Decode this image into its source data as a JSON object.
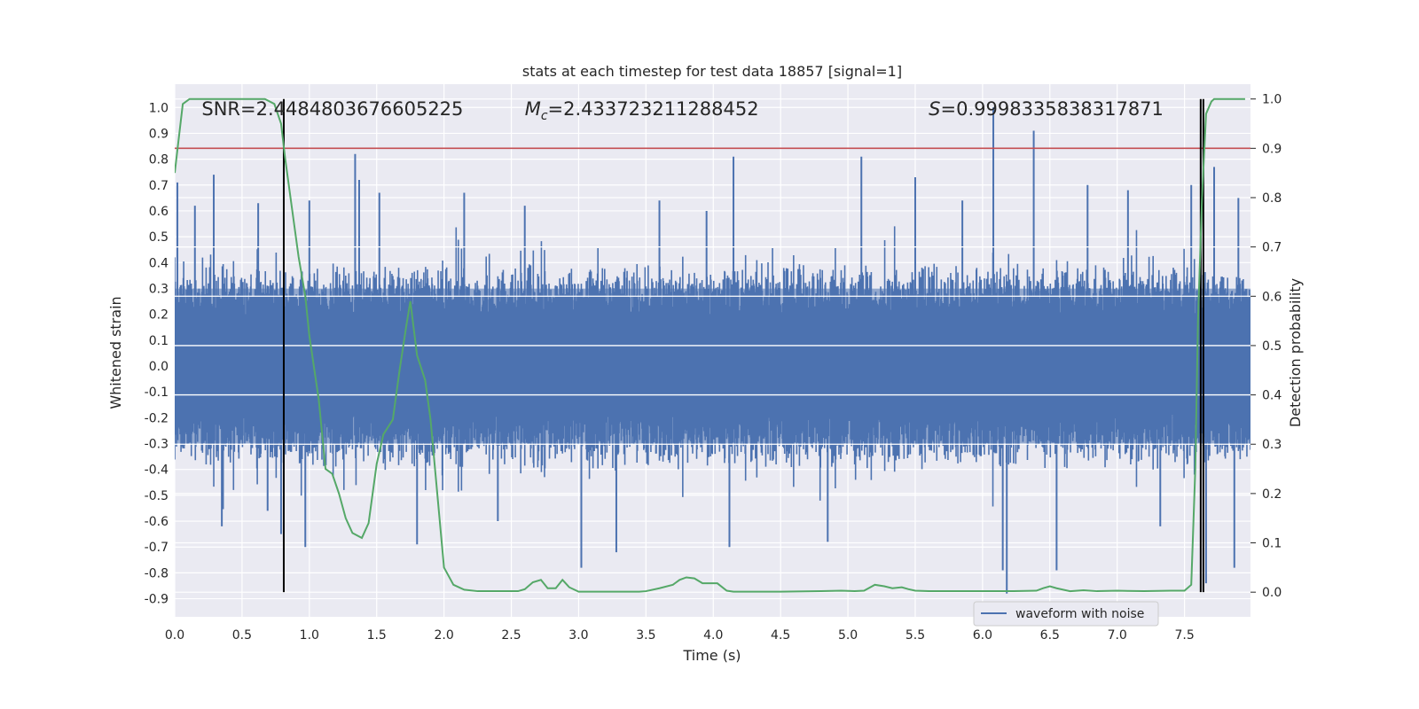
{
  "chart_data": {
    "type": "line",
    "title": "stats at each timestep for test data 18857 [signal=1]",
    "xlabel": "Time (s)",
    "ylabel_left": "Whitened strain",
    "ylabel_right": "Detection probability",
    "xlim": [
      0.0,
      7.99
    ],
    "ylim_left": [
      -0.97,
      1.09
    ],
    "ylim_right": [
      -0.05,
      1.03
    ],
    "x_ticks": [
      "0.0",
      "0.5",
      "1.0",
      "1.5",
      "2.0",
      "2.5",
      "3.0",
      "3.5",
      "4.0",
      "4.5",
      "5.0",
      "5.5",
      "6.0",
      "6.5",
      "7.0",
      "7.5"
    ],
    "x_tick_values": [
      0.0,
      0.5,
      1.0,
      1.5,
      2.0,
      2.5,
      3.0,
      3.5,
      4.0,
      4.5,
      5.0,
      5.5,
      6.0,
      6.5,
      7.0,
      7.5
    ],
    "y_left_ticks": [
      "1.0",
      "0.9",
      "0.8",
      "0.7",
      "0.6",
      "0.5",
      "0.4",
      "0.3",
      "0.2",
      "0.1",
      "0.0",
      "-0.1",
      "-0.2",
      "-0.3",
      "-0.4",
      "-0.5",
      "-0.6",
      "-0.7",
      "-0.8",
      "-0.9"
    ],
    "y_left_tick_values": [
      1.0,
      0.9,
      0.8,
      0.7,
      0.6,
      0.5,
      0.4,
      0.3,
      0.2,
      0.1,
      0.0,
      -0.1,
      -0.2,
      -0.3,
      -0.4,
      -0.5,
      -0.6,
      -0.7,
      -0.8,
      -0.9
    ],
    "y_right_ticks": [
      "1.0",
      "0.9",
      "0.8",
      "0.7",
      "0.6",
      "0.5",
      "0.4",
      "0.3",
      "0.2",
      "0.1",
      "0.0"
    ],
    "y_right_tick_values": [
      1.0,
      0.9,
      0.8,
      0.7,
      0.6,
      0.5,
      0.4,
      0.3,
      0.2,
      0.1,
      0.0
    ],
    "annotations": [
      {
        "text": "SNR=2.4484803676605225",
        "x": 0.2,
        "y": 0.99
      },
      {
        "text": "M_c=2.433723211288452",
        "x": 2.6,
        "y": 0.99
      },
      {
        "text": "S=0.9998335838317871",
        "x": 5.6,
        "y": 0.99
      }
    ],
    "legend": {
      "entries": [
        "waveform with noise"
      ],
      "placement": "lower-right"
    },
    "grid": true,
    "colors": {
      "waveform": "#4c72b0",
      "probability": "#55a868",
      "threshold": "#c44e52",
      "marker": "#000000",
      "background": "#eaeaf2"
    },
    "threshold": {
      "axis": "right",
      "value": 0.9
    },
    "vertical_markers": [
      0.81,
      7.62,
      7.64
    ],
    "waveform": {
      "name": "waveform with noise",
      "duration_s": 8.0,
      "typical_envelope": 0.4,
      "peaks": [
        {
          "x": 0.02,
          "y": 0.71
        },
        {
          "x": 0.15,
          "y": 0.62
        },
        {
          "x": 0.29,
          "y": 0.74
        },
        {
          "x": 0.35,
          "y": -0.62
        },
        {
          "x": 0.62,
          "y": 0.63
        },
        {
          "x": 0.69,
          "y": -0.56
        },
        {
          "x": 0.79,
          "y": -0.65
        },
        {
          "x": 0.97,
          "y": -0.7
        },
        {
          "x": 1.0,
          "y": 0.64
        },
        {
          "x": 1.34,
          "y": 0.82
        },
        {
          "x": 1.37,
          "y": 0.72
        },
        {
          "x": 1.52,
          "y": 0.67
        },
        {
          "x": 1.8,
          "y": -0.69
        },
        {
          "x": 2.15,
          "y": 0.67
        },
        {
          "x": 2.4,
          "y": -0.6
        },
        {
          "x": 2.6,
          "y": 0.62
        },
        {
          "x": 3.02,
          "y": -0.78
        },
        {
          "x": 3.28,
          "y": -0.72
        },
        {
          "x": 3.6,
          "y": 0.64
        },
        {
          "x": 3.95,
          "y": 0.6
        },
        {
          "x": 4.15,
          "y": 0.81
        },
        {
          "x": 4.12,
          "y": -0.7
        },
        {
          "x": 4.85,
          "y": -0.68
        },
        {
          "x": 5.1,
          "y": 0.81
        },
        {
          "x": 5.5,
          "y": 0.73
        },
        {
          "x": 5.85,
          "y": 0.64
        },
        {
          "x": 6.08,
          "y": 1.0
        },
        {
          "x": 6.15,
          "y": -0.79
        },
        {
          "x": 6.18,
          "y": -0.88
        },
        {
          "x": 6.38,
          "y": 0.91
        },
        {
          "x": 6.55,
          "y": -0.79
        },
        {
          "x": 6.78,
          "y": 0.7
        },
        {
          "x": 7.08,
          "y": 0.68
        },
        {
          "x": 7.32,
          "y": -0.62
        },
        {
          "x": 7.55,
          "y": 0.7
        },
        {
          "x": 7.72,
          "y": 0.77
        },
        {
          "x": 7.87,
          "y": -0.78
        },
        {
          "x": 7.66,
          "y": -0.84
        },
        {
          "x": 7.9,
          "y": 0.65
        }
      ]
    },
    "probability": {
      "name": "detection probability",
      "x": [
        0.0,
        0.06,
        0.11,
        0.2,
        0.3,
        0.4,
        0.5,
        0.6,
        0.67,
        0.74,
        0.79,
        0.82,
        0.87,
        0.92,
        0.97,
        1.0,
        1.07,
        1.12,
        1.17,
        1.22,
        1.27,
        1.32,
        1.39,
        1.44,
        1.5,
        1.55,
        1.62,
        1.67,
        1.72,
        1.75,
        1.8,
        1.86,
        1.9,
        1.95,
        2.0,
        2.07,
        2.15,
        2.25,
        2.4,
        2.55,
        2.6,
        2.66,
        2.72,
        2.77,
        2.83,
        2.88,
        2.93,
        3.0,
        3.1,
        3.3,
        3.45,
        3.5,
        3.6,
        3.7,
        3.75,
        3.8,
        3.86,
        3.92,
        3.98,
        4.03,
        4.1,
        4.15,
        4.2,
        4.3,
        4.5,
        4.8,
        4.95,
        5.05,
        5.12,
        5.2,
        5.27,
        5.33,
        5.4,
        5.45,
        5.5,
        5.6,
        5.8,
        6.0,
        6.2,
        6.4,
        6.45,
        6.5,
        6.55,
        6.65,
        6.75,
        6.85,
        7.0,
        7.2,
        7.4,
        7.5,
        7.55,
        7.58,
        7.6,
        7.63,
        7.66,
        7.7,
        7.72,
        7.76,
        7.82,
        7.9,
        7.95
      ],
      "y": [
        0.85,
        0.99,
        1.0,
        1.0,
        1.0,
        1.0,
        1.0,
        1.0,
        1.0,
        0.99,
        0.95,
        0.88,
        0.78,
        0.68,
        0.6,
        0.52,
        0.39,
        0.25,
        0.24,
        0.2,
        0.15,
        0.12,
        0.11,
        0.14,
        0.26,
        0.32,
        0.35,
        0.45,
        0.54,
        0.59,
        0.48,
        0.43,
        0.35,
        0.2,
        0.05,
        0.015,
        0.005,
        0.002,
        0.002,
        0.002,
        0.006,
        0.02,
        0.025,
        0.008,
        0.008,
        0.025,
        0.01,
        0.001,
        0.001,
        0.001,
        0.001,
        0.002,
        0.008,
        0.015,
        0.025,
        0.03,
        0.028,
        0.018,
        0.018,
        0.018,
        0.003,
        0.001,
        0.001,
        0.001,
        0.001,
        0.002,
        0.003,
        0.002,
        0.003,
        0.015,
        0.012,
        0.008,
        0.01,
        0.006,
        0.003,
        0.002,
        0.002,
        0.002,
        0.002,
        0.003,
        0.008,
        0.012,
        0.008,
        0.002,
        0.004,
        0.002,
        0.003,
        0.002,
        0.003,
        0.003,
        0.015,
        0.25,
        0.55,
        0.8,
        0.97,
        0.995,
        1.0,
        1.0,
        1.0,
        1.0,
        1.0
      ]
    }
  }
}
